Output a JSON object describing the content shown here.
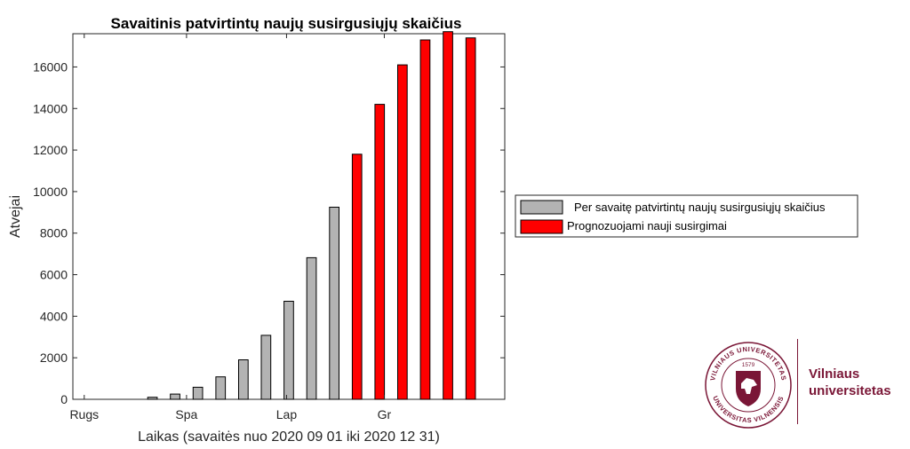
{
  "chart_data": {
    "type": "bar",
    "title": "Savaitinis patvirtintų naujų susirgusiųjų skaičius",
    "xlabel": "Laikas (savaitės nuo 2020 09 01 iki 2020 12 31)",
    "ylabel": "Atvejai",
    "ylim": [
      0,
      17600
    ],
    "yticks": [
      0,
      2000,
      4000,
      6000,
      8000,
      10000,
      12000,
      14000,
      16000
    ],
    "xlim": [
      0.5,
      19.5
    ],
    "xtick_labels": [
      {
        "label": "Rugs",
        "x": 1
      },
      {
        "label": "Spa",
        "x": 5.5
      },
      {
        "label": "Lap",
        "x": 9.9
      },
      {
        "label": "Gr",
        "x": 14.2
      }
    ],
    "legend_position": "right, outside plot",
    "series": [
      {
        "name": "Per savaitę patvirtintų naujų susirgusiųjų skaičius",
        "color": "#b3b3b3",
        "x": [
          4,
          5,
          6,
          7,
          8,
          9,
          10,
          11,
          12
        ],
        "values": [
          100,
          250,
          580,
          1080,
          1900,
          3080,
          4720,
          6820,
          9250
        ]
      },
      {
        "name": "Prognozuojami nauji susirgimai",
        "color": "#ff0000",
        "x": [
          13,
          14,
          15,
          16,
          17,
          18,
          19
        ],
        "values": [
          11800,
          14200,
          16100,
          17300,
          17700,
          17400,
          0
        ]
      }
    ]
  },
  "logo": {
    "seal_text_top": "VILNIAUS UNIVERSITETAS",
    "seal_text_bottom": "UNIVERSITAS VILNENSIS",
    "seal_year": "1579",
    "name_line1": "Vilniaus",
    "name_line2": "universitetas",
    "color": "#7a1636"
  }
}
